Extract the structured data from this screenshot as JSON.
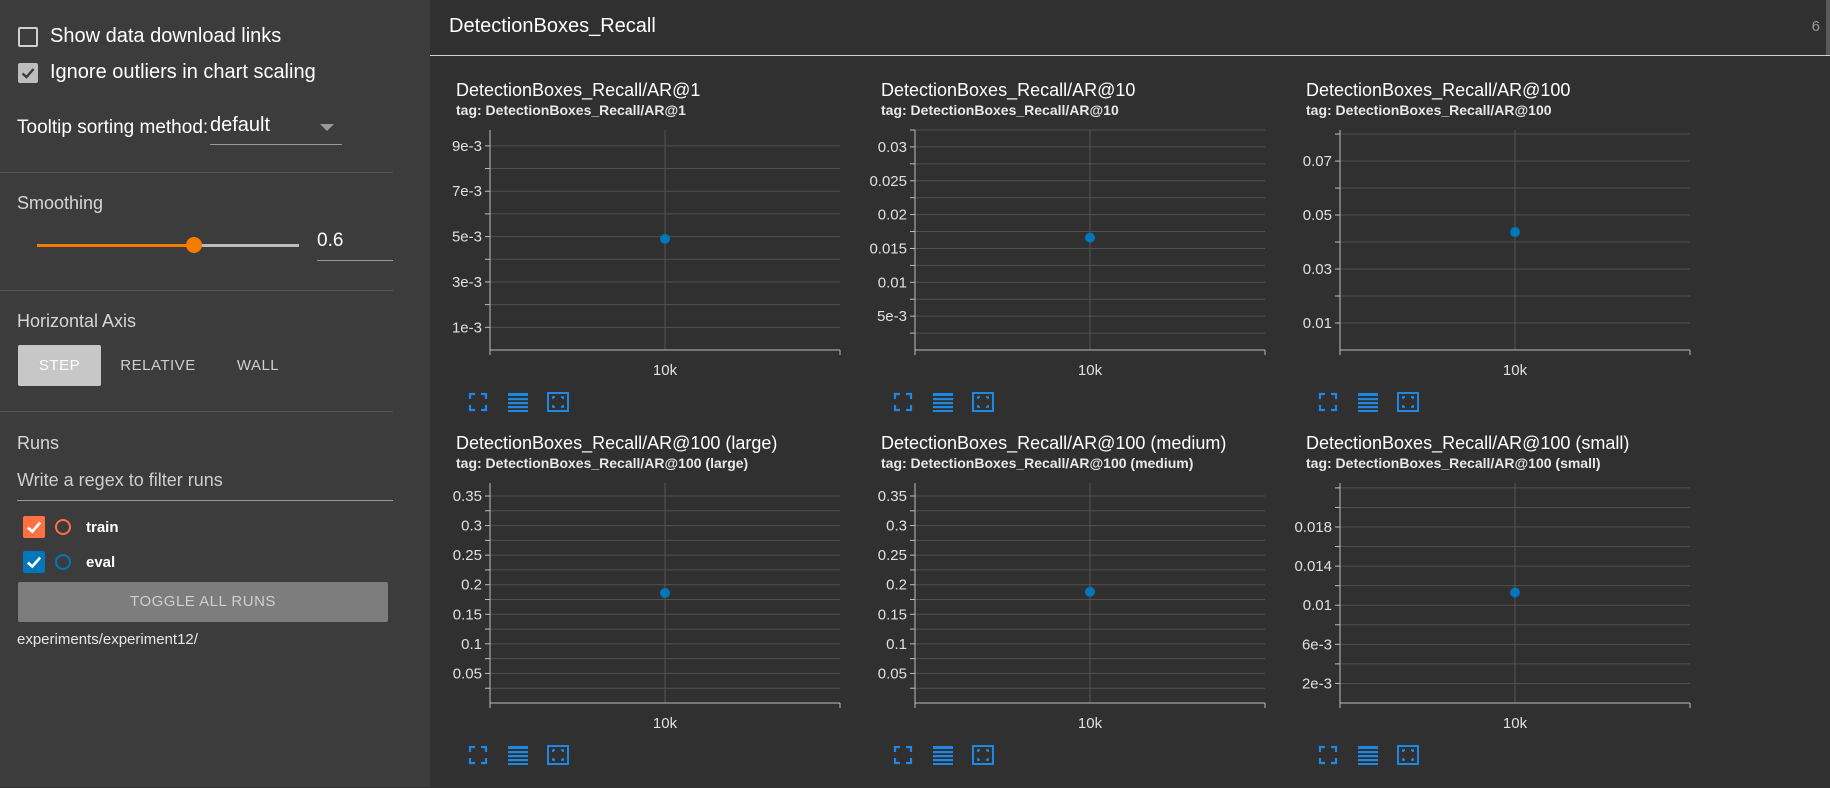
{
  "sidebar": {
    "show_download_links": {
      "label": "Show data download links",
      "checked": false
    },
    "ignore_outliers": {
      "label": "Ignore outliers in chart scaling",
      "checked": true
    },
    "tooltip_sorting": {
      "label": "Tooltip sorting method:",
      "value": "default"
    },
    "smoothing": {
      "title": "Smoothing",
      "value": "0.6",
      "level": 0.6
    },
    "horizontal_axis": {
      "title": "Horizontal Axis",
      "options": [
        "STEP",
        "RELATIVE",
        "WALL"
      ],
      "selected": "STEP"
    },
    "runs": {
      "title": "Runs",
      "filter_placeholder": "Write a regex to filter runs",
      "items": [
        {
          "name": "train",
          "color": "#ff7043",
          "checked": true
        },
        {
          "name": "eval",
          "color": "#0077bb",
          "checked": true
        }
      ],
      "toggle_all_label": "TOGGLE ALL RUNS",
      "log_dir": "experiments/experiment12/"
    }
  },
  "main": {
    "group_title": "DetectionBoxes_Recall",
    "group_count": "6"
  },
  "colors": {
    "accent": "#f57c00",
    "point": "#0077bb",
    "icon": "#1e88e5"
  },
  "icons": [
    "fullscreen-icon",
    "data-table-icon",
    "fit-domain-icon"
  ],
  "chart_data": [
    {
      "type": "scatter",
      "title": "DetectionBoxes_Recall/AR@1",
      "tag": "tag: DetectionBoxes_Recall/AR@1",
      "y_ticks": [
        "1e-3",
        "3e-3",
        "5e-3",
        "7e-3",
        "9e-3"
      ],
      "y_tick_values": [
        0.001,
        0.003,
        0.005,
        0.007,
        0.009
      ],
      "ylim": [
        0,
        0.0097
      ],
      "x_tick": "10k",
      "x": [
        10000
      ],
      "y": [
        0.0049
      ]
    },
    {
      "type": "scatter",
      "title": "DetectionBoxes_Recall/AR@10",
      "tag": "tag: DetectionBoxes_Recall/AR@10",
      "y_ticks": [
        "5e-3",
        "0.01",
        "0.015",
        "0.02",
        "0.025",
        "0.03"
      ],
      "y_tick_values": [
        0.005,
        0.01,
        0.015,
        0.02,
        0.025,
        0.03
      ],
      "ylim": [
        0,
        0.0325
      ],
      "x_tick": "10k",
      "x": [
        10000
      ],
      "y": [
        0.0166
      ]
    },
    {
      "type": "scatter",
      "title": "DetectionBoxes_Recall/AR@100",
      "tag": "tag: DetectionBoxes_Recall/AR@100",
      "y_ticks": [
        "0.01",
        "0.03",
        "0.05",
        "0.07"
      ],
      "y_tick_values": [
        0.01,
        0.03,
        0.05,
        0.07
      ],
      "ylim": [
        0,
        0.0815
      ],
      "x_tick": "10k",
      "x": [
        10000
      ],
      "y": [
        0.0437
      ]
    },
    {
      "type": "scatter",
      "title": "DetectionBoxes_Recall/AR@100 (large)",
      "tag": "tag: DetectionBoxes_Recall/AR@100 (large)",
      "y_ticks": [
        "0.05",
        "0.1",
        "0.15",
        "0.2",
        "0.25",
        "0.3",
        "0.35"
      ],
      "y_tick_values": [
        0.05,
        0.1,
        0.15,
        0.2,
        0.25,
        0.3,
        0.35
      ],
      "ylim": [
        0,
        0.372
      ],
      "x_tick": "10k",
      "x": [
        10000
      ],
      "y": [
        0.186
      ]
    },
    {
      "type": "scatter",
      "title": "DetectionBoxes_Recall/AR@100 (medium)",
      "tag": "tag: DetectionBoxes_Recall/AR@100 (medium)",
      "y_ticks": [
        "0.05",
        "0.1",
        "0.15",
        "0.2",
        "0.25",
        "0.3",
        "0.35"
      ],
      "y_tick_values": [
        0.05,
        0.1,
        0.15,
        0.2,
        0.25,
        0.3,
        0.35
      ],
      "ylim": [
        0,
        0.372
      ],
      "x_tick": "10k",
      "x": [
        10000
      ],
      "y": [
        0.188
      ]
    },
    {
      "type": "scatter",
      "title": "DetectionBoxes_Recall/AR@100 (small)",
      "tag": "tag: DetectionBoxes_Recall/AR@100 (small)",
      "y_ticks": [
        "2e-3",
        "6e-3",
        "0.01",
        "0.014",
        "0.018"
      ],
      "y_tick_values": [
        0.002,
        0.006,
        0.01,
        0.014,
        0.018
      ],
      "ylim": [
        0,
        0.0225
      ],
      "x_tick": "10k",
      "x": [
        10000
      ],
      "y": [
        0.0113
      ]
    }
  ]
}
